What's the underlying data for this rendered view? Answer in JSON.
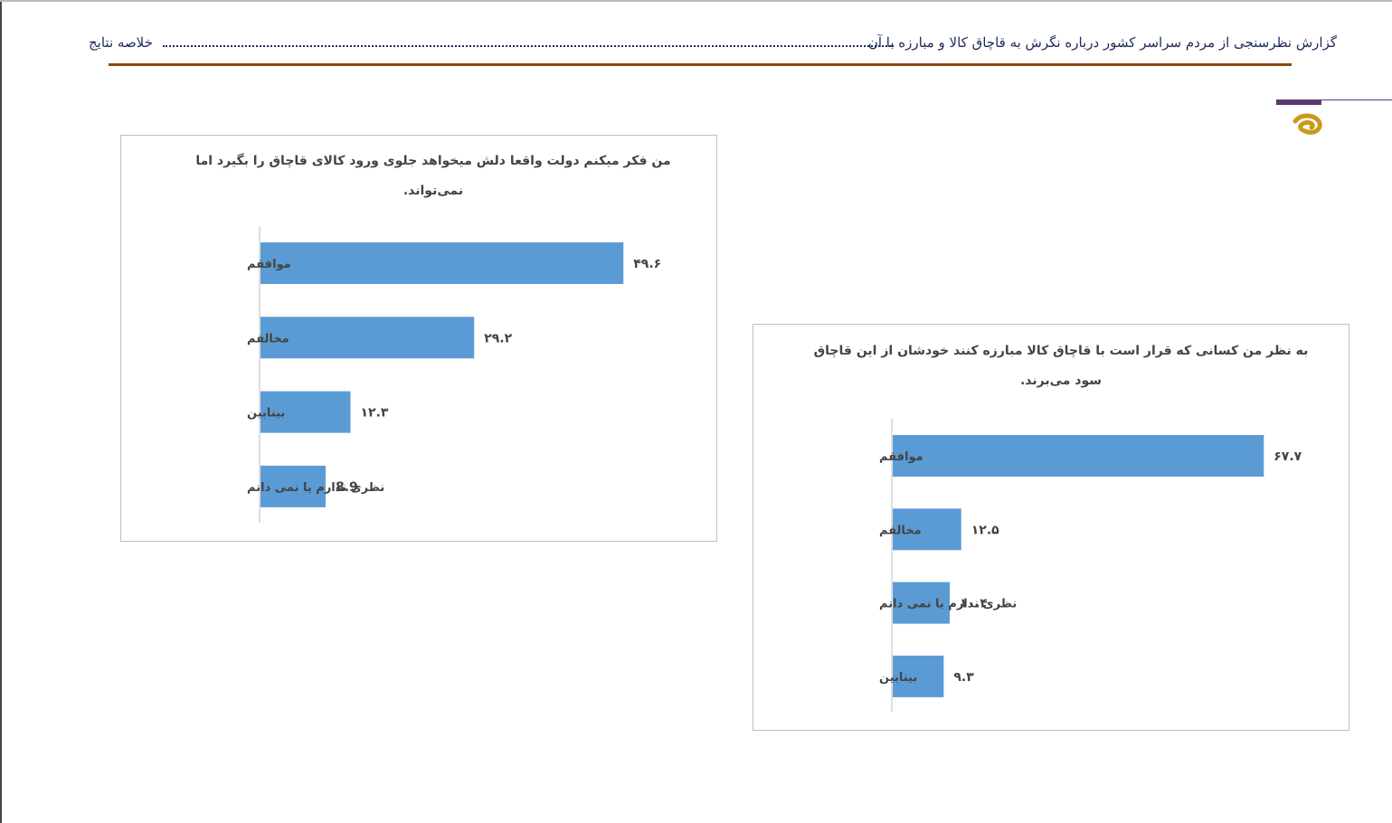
{
  "header": {
    "title": "گزارش نظرسنجی از مردم سراسر کشور درباره نگرش به قاچاق کالا و مبارزه با آن",
    "section": "خلاصه نتایج"
  },
  "colors": {
    "bar": "#5b9bd5",
    "header_rule": "#8b4a0f",
    "accent": "#5b3a6e",
    "logo": "#c99a1a"
  },
  "chart_data": [
    {
      "type": "bar",
      "orientation": "horizontal",
      "title": "من فکر میکنم دولت واقعا دلش میخواهد جلوی ورود کالای قاچاق را بگیرد اما نمی‌تواند.",
      "title_lines": [
        "من فکر میکنم دولت واقعا دلش میخواهد جلوی ورود کالای قاچاق را بگیرد اما",
        "نمی‌تواند."
      ],
      "categories": [
        "موافقم",
        "مخالفم",
        "بینابین",
        "نظری ندارم یا نمی دانم"
      ],
      "values": [
        49.6,
        29.2,
        12.3,
        8.9
      ],
      "value_labels": [
        "۴۹.۶",
        "۲۹.۲",
        "۱۲.۳",
        "8.9"
      ],
      "xlim": [
        0,
        100
      ],
      "grid": false,
      "legend": "none"
    },
    {
      "type": "bar",
      "orientation": "horizontal",
      "title": "به نظر من کسانی که قرار است با قاچاق کالا مبارزه کنند خودشان از این قاچاق سود می‌برند.",
      "title_lines": [
        "به نظر من کسانی که قرار است با قاچاق کالا مبارزه کنند خودشان از این قاچاق",
        "سود می‌برند."
      ],
      "categories": [
        "موافقم",
        "مخالفم",
        "نظری ندارم یا نمی دانم",
        "بینابین"
      ],
      "values": [
        67.7,
        12.5,
        10.4,
        9.3
      ],
      "value_labels": [
        "۶۷.۷",
        "۱۲.۵",
        "۱۰.۴",
        "۹.۳"
      ],
      "xlim": [
        0,
        100
      ],
      "grid": false,
      "legend": "none"
    }
  ]
}
